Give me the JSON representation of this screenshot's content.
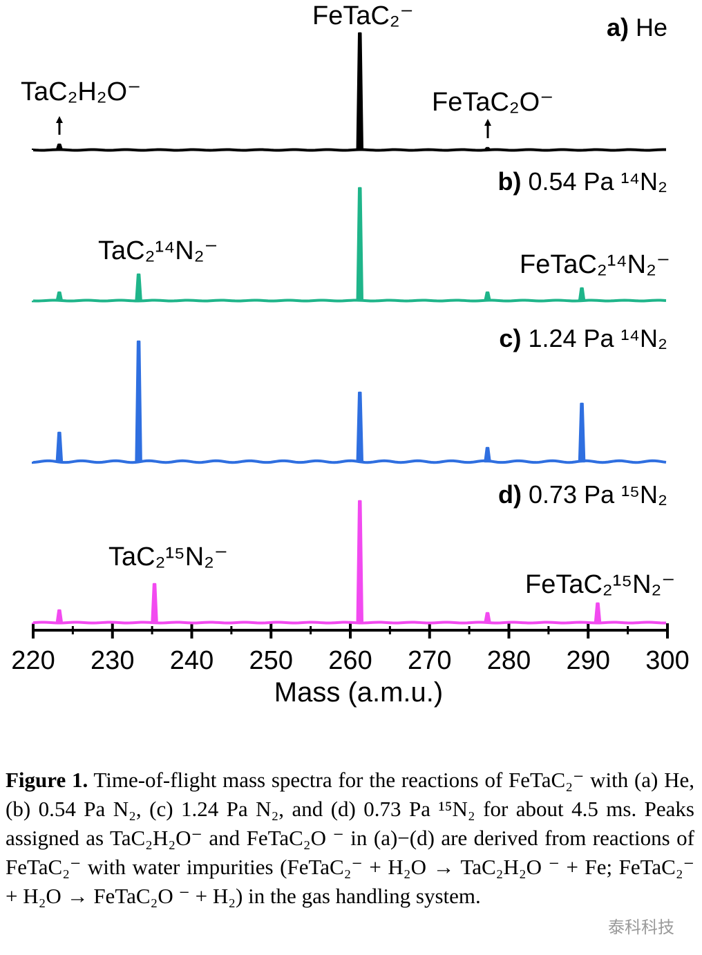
{
  "chart_data": {
    "type": "spectrum",
    "xlabel": "Mass (a.m.u.)",
    "xlim": [
      220,
      300
    ],
    "xticks": [
      220,
      230,
      240,
      250,
      260,
      270,
      280,
      290,
      300
    ],
    "xminor": [
      225,
      235,
      245,
      255,
      265,
      275,
      285,
      295
    ],
    "ylim": [
      0,
      200
    ],
    "series": [
      {
        "panel": "a)",
        "name": "He",
        "color": "#000000",
        "x": [
          223.3,
          261.2,
          277.3
        ],
        "values": [
          8,
          169,
          3
        ],
        "annotations": [
          "TaC₂H₂O⁻",
          "FeTaC₂⁻",
          "FeTaC₂O⁻"
        ]
      },
      {
        "panel": "b)",
        "name": "0.54 Pa ¹⁴N₂",
        "color": "#1fb58a",
        "x": [
          223.3,
          233.3,
          261.2,
          277.3,
          289.2
        ],
        "values": [
          12,
          38,
          163,
          12,
          18
        ],
        "annotations": [
          "TaC₂¹⁴N₂⁻",
          "FeTaC₂¹⁴N₂⁻"
        ]
      },
      {
        "panel": "c)",
        "name": "1.24 Pa ¹⁴N₂",
        "color": "#2f6fe0",
        "x": [
          223.3,
          233.3,
          261.2,
          277.3,
          289.2
        ],
        "values": [
          42,
          174,
          100,
          20,
          84
        ],
        "annotations": []
      },
      {
        "panel": "d)",
        "name": "0.73 Pa ¹⁵N₂",
        "color": "#f24af0",
        "x": [
          223.3,
          235.3,
          261.2,
          277.3,
          291.2
        ],
        "values": [
          18,
          56,
          176,
          14,
          28
        ],
        "annotations": [
          "TaC₂¹⁵N₂⁻",
          "FeTaC₂¹⁵N₂⁻"
        ]
      }
    ]
  },
  "caption": {
    "label": "Figure 1.",
    "text": "Time-of-flight mass spectra for the reactions of FeTaC₂⁻ with (a) He, (b) 0.54 Pa N₂, (c) 1.24 Pa N₂, and (d) 0.73 Pa ¹⁵N₂ for about 4.5 ms. Peaks assigned as TaC₂H₂O⁻ and FeTaC₂O ⁻ in (a)−(d) are derived from reactions of FeTaC₂⁻ with water impurities (FeTaC₂⁻ + H₂O → TaC₂H₂O ⁻ + Fe; FeTaC₂⁻ + H₂O → FeTaC₂O ⁻ + H₂) in the gas handling system."
  },
  "watermark": "泰科科技"
}
